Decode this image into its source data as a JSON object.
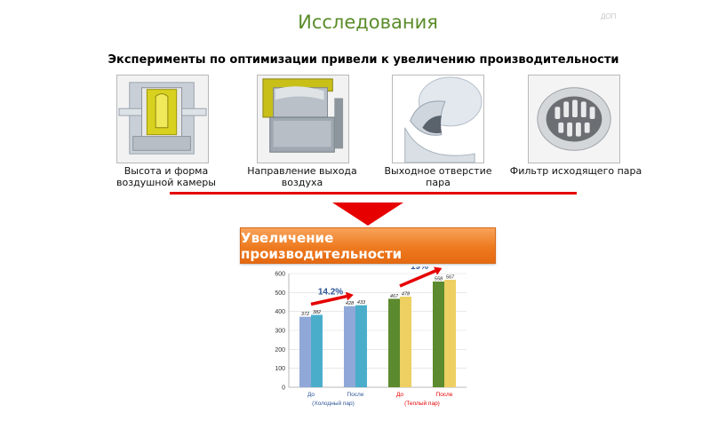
{
  "header": {
    "title": "Исследования",
    "corner_mark": "ДОП",
    "subtitle": "Эксперименты по оптимизации привели к увеличению производительности"
  },
  "experiments": [
    {
      "caption": "Высота и форма воздушной камеры",
      "image": "air-chamber-image"
    },
    {
      "caption": "Направление выхода воздуха",
      "image": "air-outlet-image"
    },
    {
      "caption": "Выходное отверстие пара",
      "image": "steam-outlet-image"
    },
    {
      "caption": "Фильтр исходящего пара",
      "image": "steam-filter-image"
    }
  ],
  "banner": {
    "label": "Увеличение производительности"
  },
  "colors": {
    "title_green": "#5b8c2a",
    "accent_red": "#e60000",
    "banner_orange": "#ee7a1f",
    "bar_lavender": "#8fa8d8",
    "bar_teal": "#4aaecb",
    "bar_olive": "#5c8a2e",
    "bar_yellow": "#edcf62",
    "annotation_blue": "#2f5597",
    "cold_label": "#2f5597",
    "warm_label": "#e60000"
  },
  "chart_data": {
    "type": "bar",
    "ylim": [
      0,
      600
    ],
    "yticks": [
      0,
      100,
      200,
      300,
      400,
      500,
      600
    ],
    "grid": true,
    "bars": [
      {
        "value": 372,
        "label": "372",
        "color": "#8fa8d8",
        "group": 0
      },
      {
        "value": 382,
        "label": "382",
        "color": "#4aaecb",
        "group": 0
      },
      {
        "value": 428,
        "label": "428",
        "color": "#8fa8d8",
        "group": 1
      },
      {
        "value": 433,
        "label": "433",
        "color": "#4aaecb",
        "group": 1
      },
      {
        "value": 467,
        "label": "467",
        "color": "#5c8a2e",
        "group": 2
      },
      {
        "value": 478,
        "label": "478",
        "color": "#edcf62",
        "group": 2
      },
      {
        "value": 558,
        "label": "558",
        "color": "#5c8a2e",
        "group": 3
      },
      {
        "value": 567,
        "label": "567",
        "color": "#edcf62",
        "group": 3
      }
    ],
    "categories": [
      "До",
      "После",
      "До",
      "После"
    ],
    "category_groups": [
      {
        "label": "(Холодный пар)",
        "color": "#2f5597",
        "span": [
          0,
          1
        ]
      },
      {
        "label": "(Теплый пар)",
        "color": "#e60000",
        "span": [
          2,
          3
        ]
      }
    ],
    "annotations": [
      {
        "text": "14.2%",
        "from_group": 0,
        "to_group": 1
      },
      {
        "text": "19%",
        "from_group": 2,
        "to_group": 3
      }
    ]
  }
}
